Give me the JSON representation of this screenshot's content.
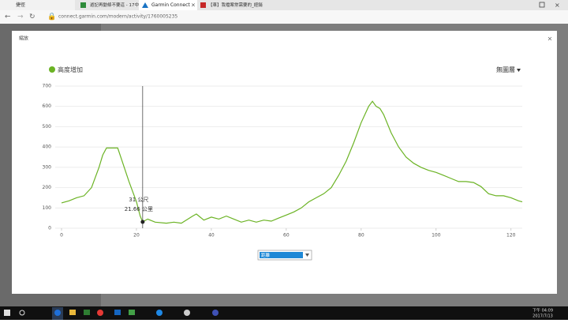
{
  "browser": {
    "tabs": [
      "捷徑",
      "遊記再動條不要這 - 17中文",
      "Garmin Connect",
      "【車】我檔案常需要的_經銷"
    ],
    "address": "connect.garmin.com/modern/activity/1760005235"
  },
  "modal": {
    "title": "縮放",
    "layer_menu": "無圖層",
    "axis_select": "距離"
  },
  "chart_data": {
    "type": "line",
    "x": [
      0,
      2,
      4,
      6,
      8,
      10,
      11,
      12,
      14,
      15,
      16,
      18,
      20,
      21,
      21.66,
      22,
      23,
      25,
      28,
      30,
      32,
      35,
      36,
      38,
      40,
      42,
      44,
      46,
      48,
      50,
      52,
      54,
      56,
      58,
      60,
      62,
      64,
      66,
      68,
      70,
      72,
      74,
      76,
      78,
      80,
      82,
      83,
      84,
      85,
      86,
      88,
      90,
      92,
      94,
      96,
      98,
      100,
      102,
      104,
      106,
      108,
      110,
      112,
      114,
      116,
      118,
      120,
      122,
      123
    ],
    "series": [
      {
        "name": "高度增加",
        "color": "#6bb324",
        "values": [
          125,
          135,
          150,
          160,
          200,
          300,
          360,
          395,
          395,
          395,
          340,
          230,
          130,
          60,
          31,
          35,
          45,
          30,
          25,
          30,
          25,
          60,
          70,
          40,
          55,
          45,
          60,
          45,
          30,
          40,
          30,
          40,
          35,
          50,
          65,
          80,
          100,
          130,
          150,
          170,
          200,
          260,
          330,
          420,
          520,
          600,
          625,
          600,
          590,
          560,
          470,
          400,
          350,
          320,
          300,
          285,
          275,
          260,
          245,
          230,
          230,
          225,
          205,
          170,
          160,
          160,
          150,
          135,
          130
        ]
      }
    ],
    "xlim": [
      0,
      123
    ],
    "xticks": [
      0,
      20,
      40,
      60,
      80,
      100,
      120
    ],
    "ylim": [
      0,
      700
    ],
    "yticks": [
      0,
      100,
      200,
      300,
      400,
      500,
      600,
      700
    ],
    "grid": true,
    "tooltip": {
      "x": 21.66,
      "y": 31,
      "y_label": "31 公尺",
      "x_label": "21.66 公里"
    }
  },
  "taskbar": {
    "time": "下午 04:09",
    "date": "2017/7/13"
  }
}
